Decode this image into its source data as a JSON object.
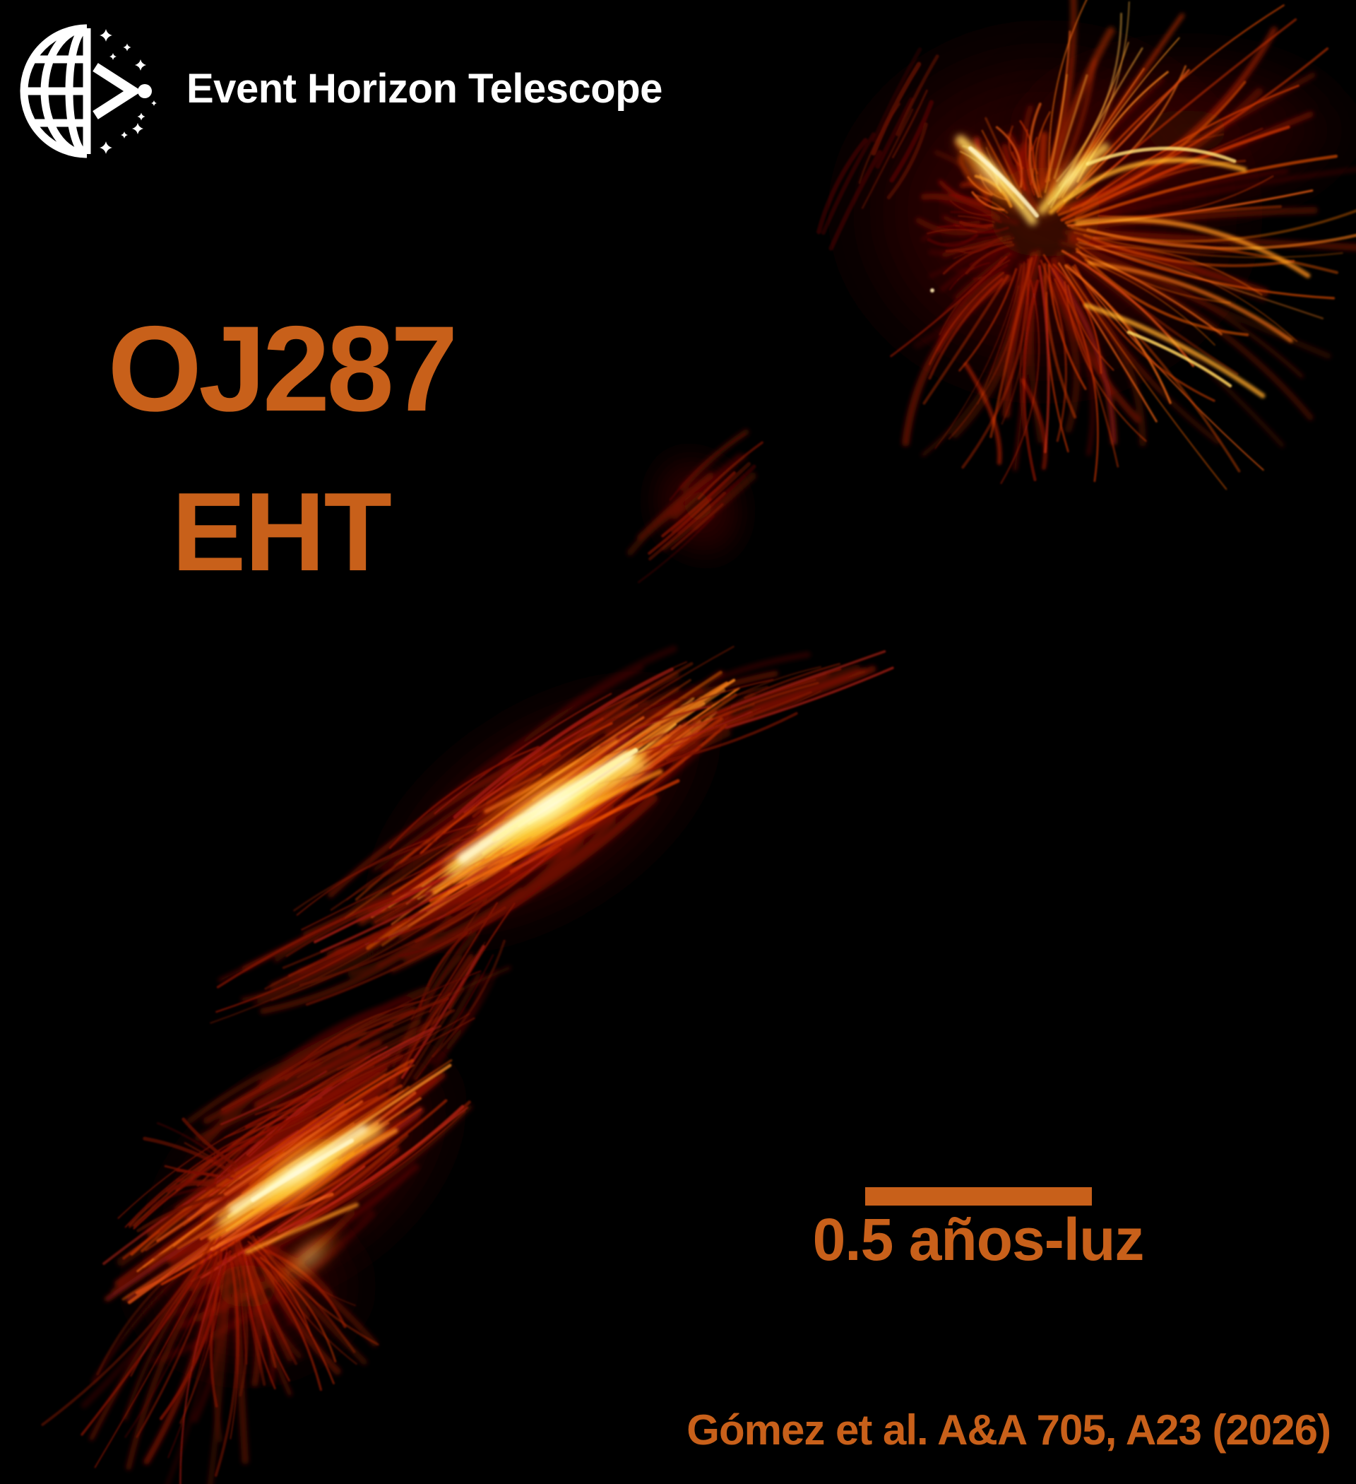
{
  "poster": {
    "background_color": "#000000",
    "accent_color": "#C8601A",
    "text_white": "#FFFFFF"
  },
  "header": {
    "logo_icon": "eht-globe-arrow-stars-logo",
    "brand": "Event Horizon Telescope"
  },
  "labels": {
    "source_name": "OJ287",
    "instrument": "EHT"
  },
  "scale_bar": {
    "label": "0.5 años-luz",
    "color": "#C8601A"
  },
  "citation": "Gómez et al. A&A 705, A23 (2026)",
  "image": {
    "subject": "oj287-jet-polarization-streamlines",
    "palette": [
      "#240402",
      "#5a0c03",
      "#97180a",
      "#c23406",
      "#e96a0d",
      "#fca32c",
      "#ffd25e",
      "#fff6d8"
    ]
  }
}
